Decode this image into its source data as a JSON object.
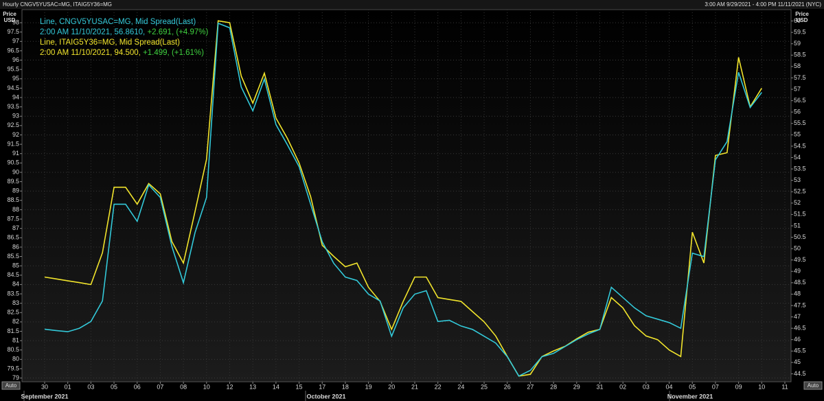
{
  "chart_data": {
    "type": "line",
    "title": "Hourly CNGV5YUSAC=MG, ITAIG5Y36=MG",
    "date_range": "3:00 AM 9/29/2021 - 4:00 PM 11/11/2021 (NYC)",
    "y_label": "Price\nUSD",
    "y2_label": "Price\nUSD",
    "auto_buttons": [
      "Auto",
      "Auto"
    ],
    "months": [
      "September 2021",
      "October 2021",
      "November 2021"
    ],
    "categories": [
      "30",
      null,
      "01",
      null,
      "03",
      null,
      "05",
      null,
      "06",
      null,
      "07",
      null,
      "08",
      null,
      "10",
      null,
      "12",
      null,
      "13",
      null,
      "14",
      null,
      "15",
      null,
      "17",
      null,
      "18",
      null,
      "19",
      null,
      "20",
      null,
      "21",
      null,
      "22",
      null,
      "24",
      null,
      "25",
      null,
      "26",
      null,
      "27",
      null,
      "28",
      null,
      "29",
      null,
      "31",
      null,
      "02",
      null,
      "03",
      null,
      "04",
      null,
      "05",
      null,
      "07",
      null,
      "09",
      null,
      "10",
      null,
      "11"
    ],
    "series": [
      {
        "name": "Line, CNGV5YUSAC=MG, Mid Spread(Last)",
        "axis": "y2",
        "color": "#33c9d9",
        "last": {
          "label": "2:00 AM 11/10/2021, 56.8610,",
          "change": "+2.691, (+4.97%)"
        },
        "values": [
          46.46,
          46.4,
          46.35,
          46.5,
          46.8,
          47.7,
          51.95,
          51.95,
          51.2,
          52.8,
          52.25,
          50.1,
          48.5,
          50.7,
          52.25,
          59.9,
          59.7,
          57.1,
          56.05,
          57.45,
          55.45,
          54.55,
          53.6,
          51.95,
          50.3,
          49.35,
          48.75,
          48.6,
          48.0,
          47.7,
          46.15,
          47.4,
          48.0,
          48.15,
          46.8,
          46.85,
          46.6,
          46.45,
          46.15,
          45.85,
          45.25,
          44.4,
          44.65,
          45.25,
          45.4,
          45.7,
          46.0,
          46.25,
          46.45,
          48.3,
          47.85,
          47.4,
          47.05,
          46.9,
          46.75,
          46.5,
          49.8,
          49.65,
          53.9,
          54.7,
          57.75,
          56.2,
          56.861,
          null,
          null
        ]
      },
      {
        "name": "Line, ITAIG5Y36=MG, Mid Spread(Last)",
        "color": "#f2e52c",
        "last": {
          "label": "2:00 AM 11/10/2021, 94.500,",
          "change": "+1.499, (+1.61%)"
        },
        "values": [
          84.4,
          84.3,
          84.2,
          84.1,
          84.0,
          85.7,
          89.2,
          89.2,
          88.3,
          89.4,
          88.85,
          86.3,
          85.15,
          87.9,
          90.7,
          98.1,
          98.0,
          95.15,
          93.7,
          95.3,
          92.9,
          91.8,
          90.5,
          88.7,
          86.1,
          85.5,
          84.95,
          85.15,
          83.85,
          83.1,
          81.6,
          83.1,
          84.4,
          84.4,
          83.3,
          83.2,
          83.1,
          82.55,
          82.0,
          81.25,
          80.15,
          79.1,
          79.2,
          80.15,
          80.45,
          80.7,
          81.1,
          81.45,
          81.6,
          83.3,
          82.75,
          81.8,
          81.25,
          81.05,
          80.5,
          80.15,
          86.8,
          85.15,
          90.9,
          91.05,
          96.15,
          93.5,
          94.5,
          null,
          null
        ]
      }
    ],
    "change_color": "#3fd13f",
    "ylim": [
      78.8,
      98.7
    ],
    "yticks": [
      79,
      79.5,
      80,
      80.5,
      81,
      81.5,
      82,
      82.5,
      83,
      83.5,
      84,
      84.5,
      85,
      85.5,
      86,
      86.5,
      87,
      87.5,
      88,
      88.5,
      89,
      89.5,
      90,
      90.5,
      91,
      91.5,
      92,
      92.5,
      93,
      93.5,
      94,
      94.5,
      95,
      95.5,
      96,
      96.5,
      97,
      97.5,
      98
    ],
    "y2lim": [
      44.15,
      60.5
    ],
    "y2ticks": [
      44.5,
      45,
      45.5,
      46,
      46.5,
      47,
      47.5,
      48,
      48.5,
      49,
      49.5,
      50,
      50.5,
      51,
      51.5,
      52,
      52.5,
      53,
      53.5,
      54,
      54.5,
      55,
      55.5,
      56,
      56.5,
      57,
      57.5,
      58,
      58.5,
      59,
      59.5,
      60
    ],
    "grid": true
  }
}
